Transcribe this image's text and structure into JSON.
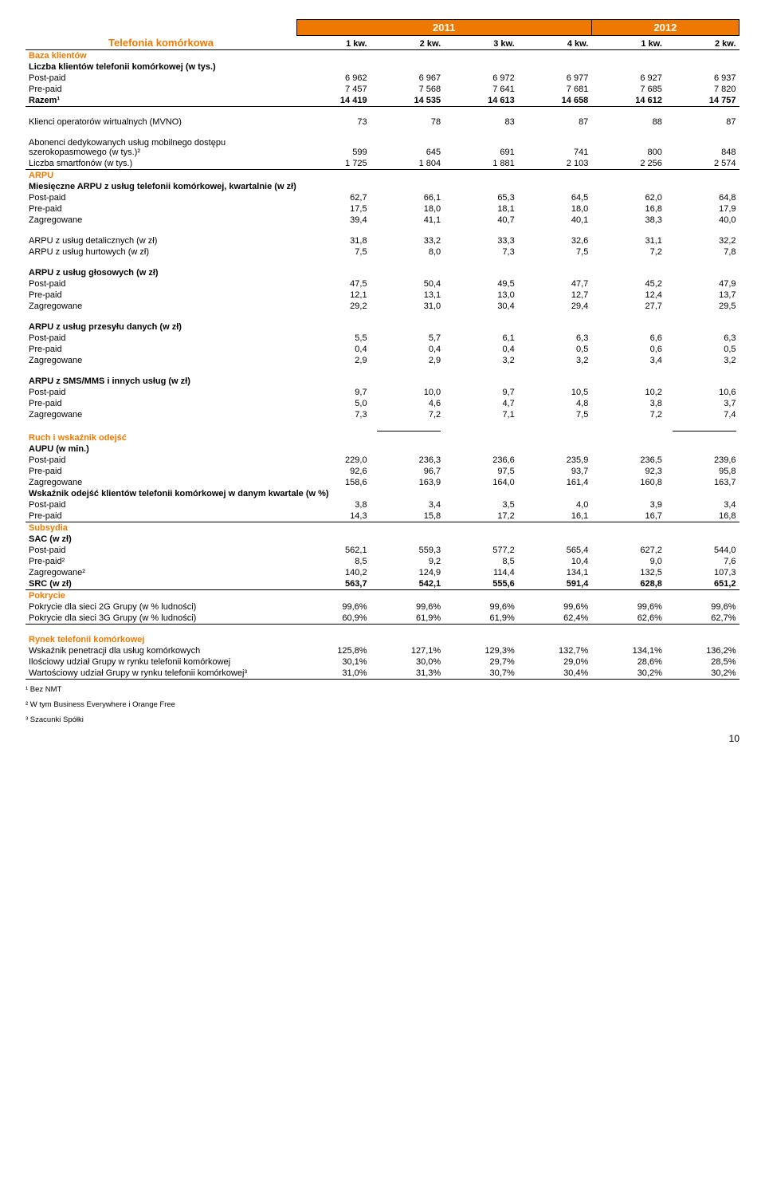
{
  "header": {
    "title": "Telefonia komórkowa",
    "years": [
      "2011",
      "2012"
    ],
    "quarters": [
      "1 kw.",
      "2 kw.",
      "3 kw.",
      "4 kw.",
      "1 kw.",
      "2 kw."
    ]
  },
  "sections": {
    "baza": {
      "title": "Baza klientów",
      "liczba_title": "Liczba klientów telefonii komórkowej (w tys.)",
      "rows": [
        {
          "label": "Post-paid",
          "v": [
            "6 962",
            "6 967",
            "6 972",
            "6 977",
            "6 927",
            "6 937"
          ]
        },
        {
          "label": "Pre-paid",
          "v": [
            "7 457",
            "7 568",
            "7 641",
            "7 681",
            "7 685",
            "7 820"
          ]
        },
        {
          "label": "Razem¹",
          "v": [
            "14 419",
            "14 535",
            "14 613",
            "14 658",
            "14 612",
            "14 757"
          ],
          "bold": true,
          "underline": true
        }
      ],
      "mvno": {
        "label": "Klienci operatorów wirtualnych (MVNO)",
        "v": [
          "73",
          "78",
          "83",
          "87",
          "88",
          "87"
        ]
      },
      "abonenci": {
        "label": "Abonenci dedykowanych usług mobilnego dostępu szerokopasmowego (w tys.)²",
        "v": [
          "599",
          "645",
          "691",
          "741",
          "800",
          "848"
        ]
      },
      "smartfon": {
        "label": "Liczba smartfonów (w tys.)",
        "v": [
          "1 725",
          "1 804",
          "1 881",
          "2 103",
          "2 256",
          "2 574"
        ],
        "underline": true
      }
    },
    "arpu": {
      "title": "ARPU",
      "miesieczne_title": "Miesięczne ARPU z usług telefonii komórkowej, kwartalnie (w zł)",
      "miesieczne_rows": [
        {
          "label": "Post-paid",
          "v": [
            "62,7",
            "66,1",
            "65,3",
            "64,5",
            "62,0",
            "64,8"
          ]
        },
        {
          "label": "Pre-paid",
          "v": [
            "17,5",
            "18,0",
            "18,1",
            "18,0",
            "16,8",
            "17,9"
          ]
        },
        {
          "label": "Zagregowane",
          "v": [
            "39,4",
            "41,1",
            "40,7",
            "40,1",
            "38,3",
            "40,0"
          ]
        }
      ],
      "detal": {
        "label": "ARPU z usług detalicznych (w zł)",
        "v": [
          "31,8",
          "33,2",
          "33,3",
          "32,6",
          "31,1",
          "32,2"
        ]
      },
      "hurt": {
        "label": "ARPU z usług hurtowych (w zł)",
        "v": [
          "7,5",
          "8,0",
          "7,3",
          "7,5",
          "7,2",
          "7,8"
        ]
      },
      "glosowe_title": "ARPU z usług głosowych (w zł)",
      "glosowe_rows": [
        {
          "label": "Post-paid",
          "v": [
            "47,5",
            "50,4",
            "49,5",
            "47,7",
            "45,2",
            "47,9"
          ]
        },
        {
          "label": "Pre-paid",
          "v": [
            "12,1",
            "13,1",
            "13,0",
            "12,7",
            "12,4",
            "13,7"
          ]
        },
        {
          "label": "Zagregowane",
          "v": [
            "29,2",
            "31,0",
            "30,4",
            "29,4",
            "27,7",
            "29,5"
          ]
        }
      ],
      "przesylu_title": "ARPU z usług przesyłu danych (w zł)",
      "przesylu_rows": [
        {
          "label": "Post-paid",
          "v": [
            "5,5",
            "5,7",
            "6,1",
            "6,3",
            "6,6",
            "6,3"
          ]
        },
        {
          "label": "Pre-paid",
          "v": [
            "0,4",
            "0,4",
            "0,4",
            "0,5",
            "0,6",
            "0,5"
          ]
        },
        {
          "label": "Zagregowane",
          "v": [
            "2,9",
            "2,9",
            "3,2",
            "3,2",
            "3,4",
            "3,2"
          ]
        }
      ],
      "sms_title": "ARPU z SMS/MMS i innych usług (w zł)",
      "sms_rows": [
        {
          "label": "Post-paid",
          "v": [
            "9,7",
            "10,0",
            "9,7",
            "10,5",
            "10,2",
            "10,6"
          ]
        },
        {
          "label": "Pre-paid",
          "v": [
            "5,0",
            "4,6",
            "4,7",
            "4,8",
            "3,8",
            "3,7"
          ]
        },
        {
          "label": "Zagregowane",
          "v": [
            "7,3",
            "7,2",
            "7,1",
            "7,5",
            "7,2",
            "7,4"
          ]
        }
      ]
    },
    "ruch": {
      "title": "Ruch i wskaźnik odejść",
      "aupu_title": "AUPU (w min.)",
      "aupu_rows": [
        {
          "label": "Post-paid",
          "v": [
            "229,0",
            "236,3",
            "236,6",
            "235,9",
            "236,5",
            "239,6"
          ]
        },
        {
          "label": "Pre-paid",
          "v": [
            "92,6",
            "96,7",
            "97,5",
            "93,7",
            "92,3",
            "95,8"
          ]
        },
        {
          "label": "Zagregowane",
          "v": [
            "158,6",
            "163,9",
            "164,0",
            "161,4",
            "160,8",
            "163,7"
          ]
        }
      ],
      "wskaznik_title": "Wskaźnik odejść klientów telefonii komórkowej w danym kwartale (w %)",
      "wskaznik_rows": [
        {
          "label": "Post-paid",
          "v": [
            "3,8",
            "3,4",
            "3,5",
            "4,0",
            "3,9",
            "3,4"
          ]
        },
        {
          "label": "Pre-paid",
          "v": [
            "14,3",
            "15,8",
            "17,2",
            "16,1",
            "16,7",
            "16,8"
          ],
          "underline": true
        }
      ]
    },
    "subsydia": {
      "title": "Subsydia",
      "sac_title": "SAC (w zł)",
      "sac_rows": [
        {
          "label": "Post-paid",
          "v": [
            "562,1",
            "559,3",
            "577,2",
            "565,4",
            "627,2",
            "544,0"
          ]
        },
        {
          "label": "Pre-paid²",
          "v": [
            "8,5",
            "9,2",
            "8,5",
            "10,4",
            "9,0",
            "7,6"
          ]
        },
        {
          "label": "Zagregowane²",
          "v": [
            "140,2",
            "124,9",
            "114,4",
            "134,1",
            "132,5",
            "107,3"
          ]
        }
      ],
      "src": {
        "label": "SRC (w zł)",
        "v": [
          "563,7",
          "542,1",
          "555,6",
          "591,4",
          "628,8",
          "651,2"
        ],
        "bold": true,
        "underline": true
      }
    },
    "pokrycie": {
      "title": "Pokrycie",
      "rows": [
        {
          "label": "Pokrycie dla sieci 2G Grupy (w % ludności)",
          "v": [
            "99,6%",
            "99,6%",
            "99,6%",
            "99,6%",
            "99,6%",
            "99,6%"
          ]
        },
        {
          "label": "Pokrycie dla sieci 3G Grupy (w % ludności)",
          "v": [
            "60,9%",
            "61,9%",
            "61,9%",
            "62,4%",
            "62,6%",
            "62,7%"
          ],
          "underline": true
        }
      ]
    },
    "rynek": {
      "title": "Rynek telefonii komórkowej",
      "rows": [
        {
          "label": "Wskaźnik penetracji dla usług komórkowych",
          "v": [
            "125,8%",
            "127,1%",
            "129,3%",
            "132,7%",
            "134,1%",
            "136,2%"
          ]
        },
        {
          "label": "Ilościowy udział Grupy w rynku telefonii komórkowej",
          "v": [
            "30,1%",
            "30,0%",
            "29,7%",
            "29,0%",
            "28,6%",
            "28,5%"
          ]
        },
        {
          "label": "Wartościowy udział Grupy w rynku telefonii komórkowej³",
          "v": [
            "31,0%",
            "31,3%",
            "30,7%",
            "30,4%",
            "30,2%",
            "30,2%"
          ],
          "underline": true
        }
      ]
    }
  },
  "footnotes": [
    "¹ Bez NMT",
    "² W tym Business Everywhere i Orange Free",
    "³ Szacunki Spółki"
  ],
  "page_number": "10"
}
